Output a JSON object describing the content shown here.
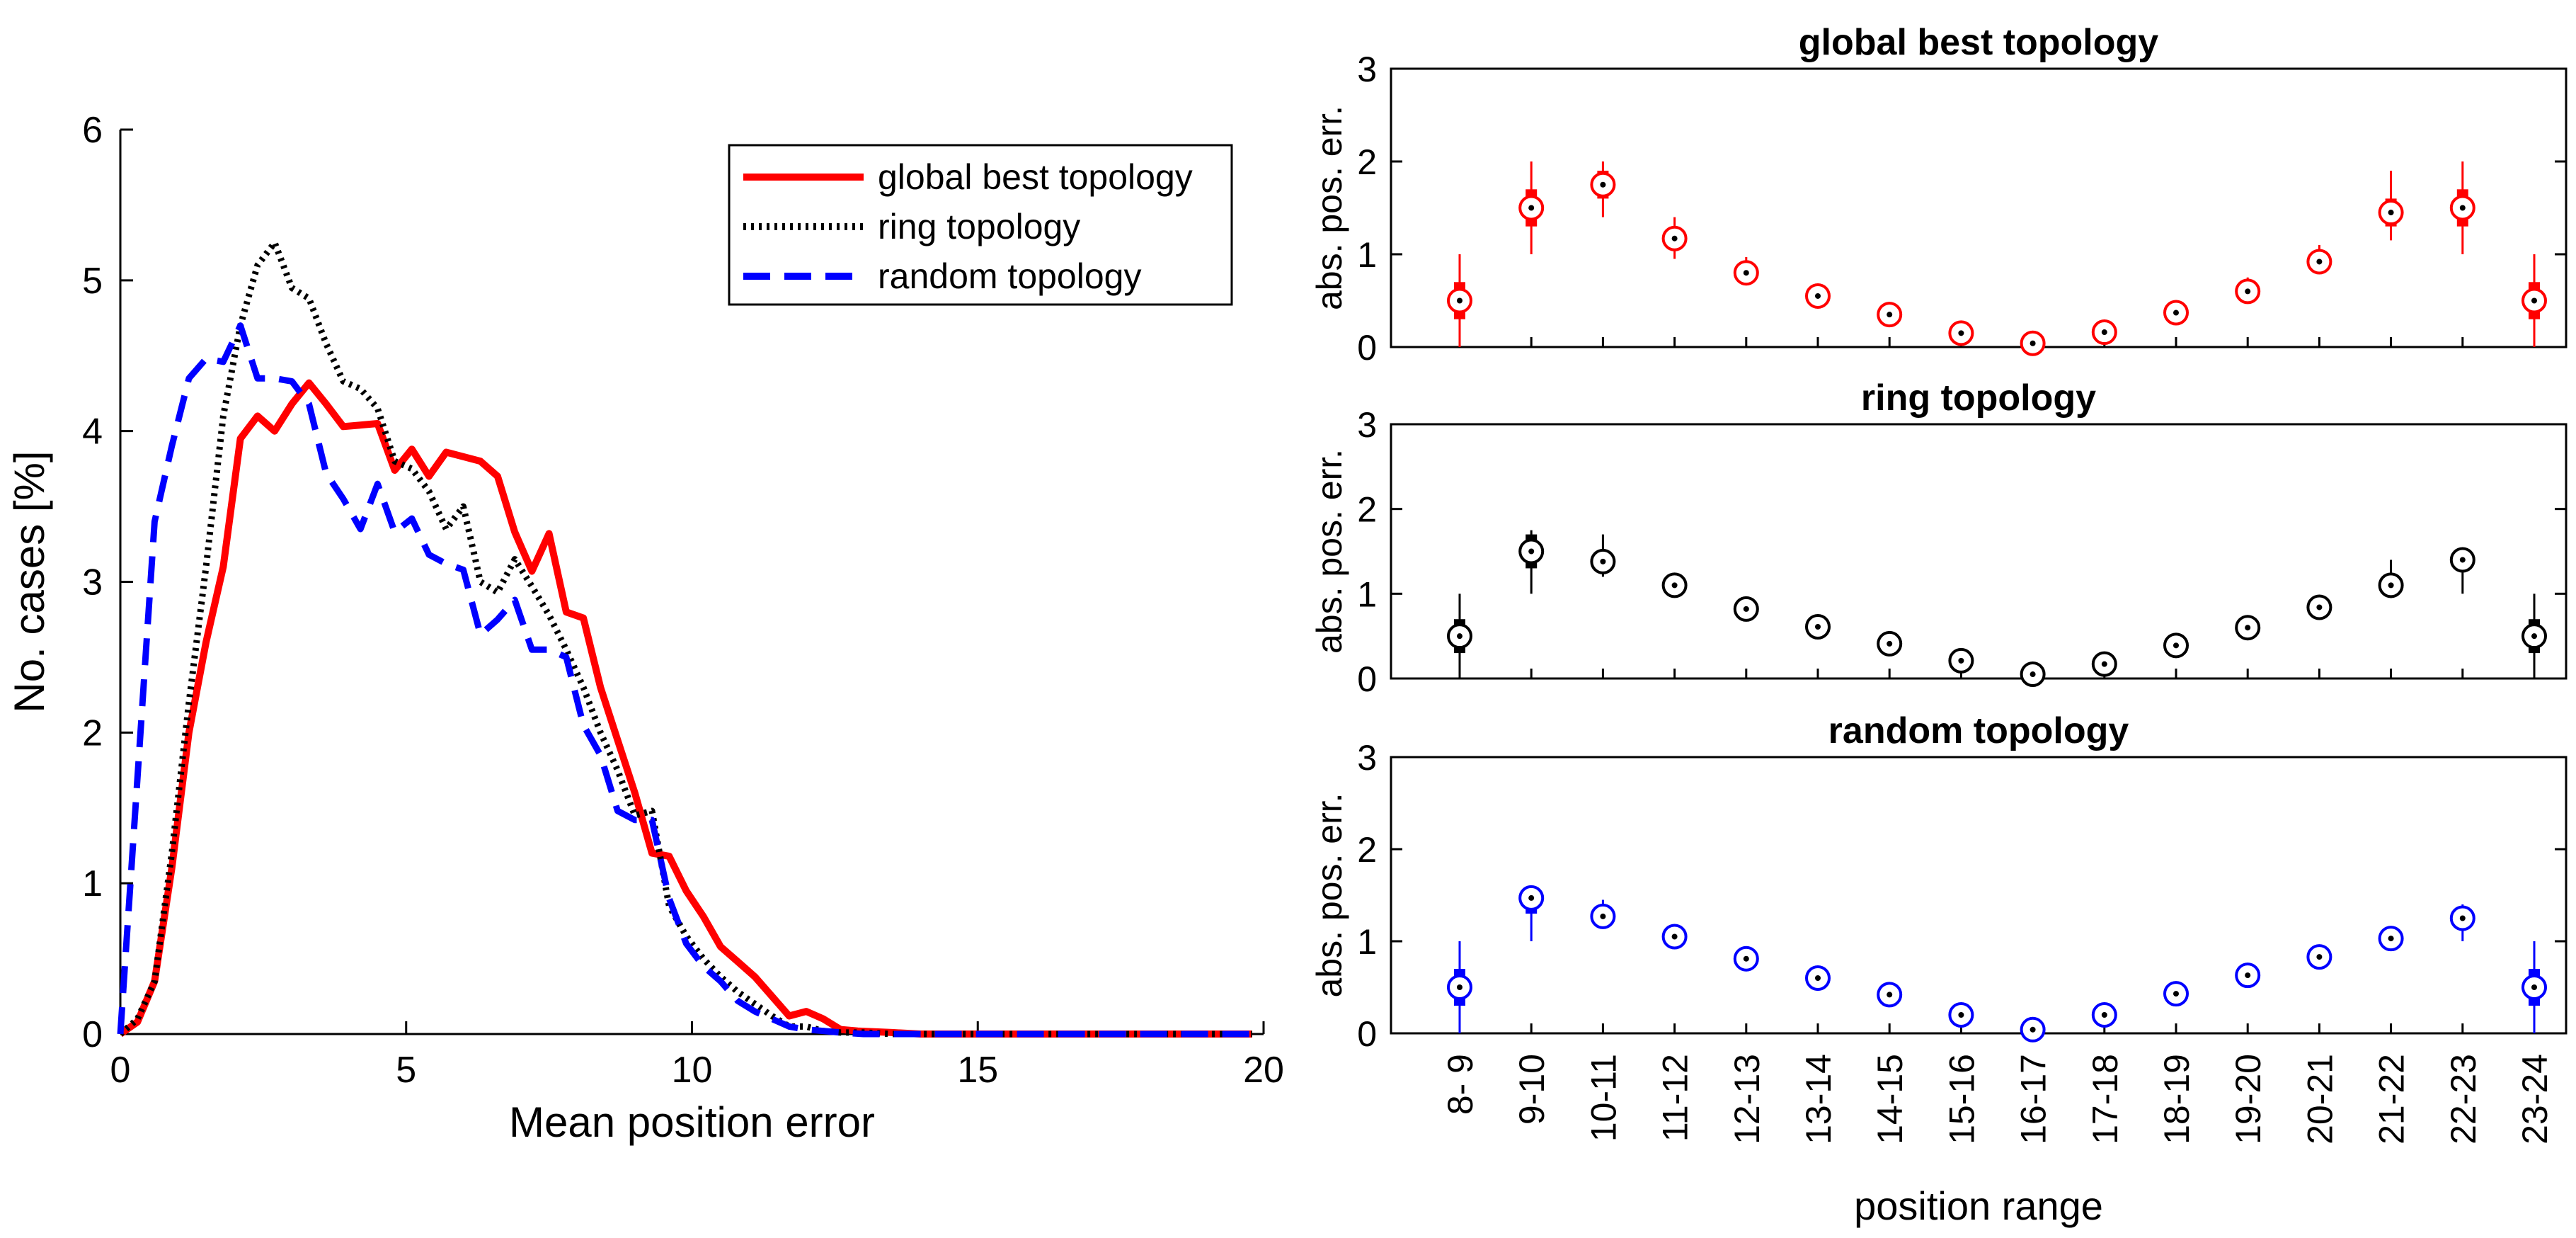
{
  "chart_data": [
    {
      "type": "line",
      "xlabel": "Mean position error",
      "ylabel": "No. cases [%]",
      "xlim": [
        0,
        20
      ],
      "ylim": [
        0,
        6
      ],
      "xticks": [
        0,
        5,
        10,
        15,
        20
      ],
      "yticks": [
        0,
        1,
        2,
        3,
        4,
        5,
        6
      ],
      "grid": false,
      "legend_position": "top-right",
      "series": [
        {
          "name": "global best topology",
          "color": "#ff0000",
          "style": "solid",
          "x": [
            0,
            0.3,
            0.6,
            0.9,
            1.2,
            1.5,
            1.8,
            2.1,
            2.4,
            2.7,
            3.0,
            3.3,
            3.6,
            3.9,
            4.2,
            4.5,
            4.8,
            5.1,
            5.4,
            5.7,
            6.0,
            6.3,
            6.6,
            6.9,
            7.2,
            7.5,
            7.8,
            8.1,
            8.4,
            8.7,
            9.0,
            9.3,
            9.6,
            9.9,
            10.2,
            10.5,
            10.8,
            11.1,
            11.4,
            11.7,
            12.0,
            12.3,
            12.6,
            12.9,
            13.5,
            14,
            15,
            16,
            17,
            18,
            19,
            19.8
          ],
          "y": [
            0,
            0.08,
            0.35,
            1.1,
            2.0,
            2.6,
            3.1,
            3.95,
            4.1,
            4.0,
            4.18,
            4.32,
            4.18,
            4.03,
            4.04,
            4.05,
            3.74,
            3.88,
            3.7,
            3.86,
            3.83,
            3.8,
            3.7,
            3.33,
            3.07,
            3.32,
            2.8,
            2.76,
            2.3,
            1.95,
            1.6,
            1.2,
            1.18,
            0.95,
            0.78,
            0.58,
            0.48,
            0.38,
            0.25,
            0.12,
            0.15,
            0.1,
            0.03,
            0.02,
            0.01,
            0,
            0,
            0,
            0,
            0,
            0,
            0
          ]
        },
        {
          "name": "ring topology",
          "color": "#000000",
          "style": "dotted",
          "x": [
            0,
            0.3,
            0.6,
            0.9,
            1.2,
            1.5,
            1.8,
            2.1,
            2.4,
            2.7,
            3.0,
            3.3,
            3.6,
            3.9,
            4.2,
            4.5,
            4.8,
            5.1,
            5.4,
            5.7,
            6.0,
            6.3,
            6.6,
            6.9,
            7.2,
            7.5,
            7.8,
            8.1,
            8.4,
            8.7,
            9.0,
            9.3,
            9.6,
            9.9,
            10.2,
            10.5,
            10.8,
            11.1,
            11.4,
            11.7,
            12.0,
            12.3,
            12.6,
            13,
            13.5,
            14,
            15,
            16,
            17,
            18,
            19,
            19.8
          ],
          "y": [
            0,
            0.1,
            0.35,
            1.2,
            2.2,
            3.1,
            4.1,
            4.7,
            5.1,
            5.25,
            4.95,
            4.88,
            4.58,
            4.33,
            4.28,
            4.15,
            3.8,
            3.75,
            3.6,
            3.35,
            3.5,
            3.0,
            2.93,
            3.15,
            2.97,
            2.78,
            2.55,
            2.3,
            2.0,
            1.75,
            1.45,
            1.48,
            0.85,
            0.65,
            0.5,
            0.38,
            0.28,
            0.2,
            0.12,
            0.05,
            0.05,
            0.02,
            0.01,
            0.01,
            0,
            0,
            0,
            0,
            0,
            0,
            0,
            0
          ]
        },
        {
          "name": "random topology",
          "color": "#0000ff",
          "style": "dashed",
          "x": [
            0,
            0.3,
            0.6,
            0.9,
            1.2,
            1.5,
            1.8,
            2.1,
            2.4,
            2.7,
            3.0,
            3.3,
            3.6,
            3.9,
            4.2,
            4.5,
            4.8,
            5.1,
            5.4,
            5.7,
            6.0,
            6.3,
            6.6,
            6.9,
            7.2,
            7.5,
            7.8,
            8.1,
            8.4,
            8.7,
            9.0,
            9.3,
            9.6,
            9.9,
            10.2,
            10.5,
            10.8,
            11.1,
            11.4,
            11.7,
            12.0,
            12.3,
            12.6,
            13,
            13.5,
            14,
            15,
            16,
            17,
            18,
            19,
            19.8
          ],
          "y": [
            0,
            1.7,
            3.4,
            3.9,
            4.35,
            4.48,
            4.46,
            4.7,
            4.35,
            4.35,
            4.33,
            4.18,
            3.72,
            3.55,
            3.35,
            3.65,
            3.33,
            3.42,
            3.18,
            3.12,
            3.08,
            2.65,
            2.75,
            2.88,
            2.55,
            2.55,
            2.5,
            2.05,
            1.85,
            1.48,
            1.42,
            1.42,
            0.9,
            0.6,
            0.45,
            0.35,
            0.22,
            0.15,
            0.1,
            0.05,
            0.03,
            0.02,
            0.01,
            0,
            0,
            0,
            0,
            0,
            0,
            0,
            0,
            0
          ]
        }
      ]
    },
    {
      "type": "box",
      "title": "global best topology",
      "ylabel": "abs. pos. err.",
      "ylim": [
        0,
        3
      ],
      "yticks": [
        0,
        1,
        2,
        3
      ],
      "color": "#ff0000",
      "categories": [
        "8- 9",
        "9-10",
        "10-11",
        "11-12",
        "12-13",
        "13-14",
        "14-15",
        "15-16",
        "16-17",
        "17-18",
        "18-19",
        "19-20",
        "20-21",
        "21-22",
        "22-23",
        "23-24"
      ],
      "median": [
        0.5,
        1.5,
        1.75,
        1.17,
        0.8,
        0.55,
        0.35,
        0.15,
        0.04,
        0.16,
        0.37,
        0.6,
        0.92,
        1.45,
        1.5,
        0.5
      ],
      "q1": [
        0.3,
        1.3,
        1.6,
        1.1,
        0.77,
        0.53,
        0.33,
        0.14,
        0.03,
        0.15,
        0.35,
        0.58,
        0.88,
        1.3,
        1.3,
        0.3
      ],
      "q3": [
        0.7,
        1.7,
        1.9,
        1.25,
        0.85,
        0.58,
        0.38,
        0.17,
        0.05,
        0.18,
        0.4,
        0.65,
        0.97,
        1.6,
        1.7,
        0.7
      ],
      "whisker_low": [
        0,
        1.0,
        1.4,
        0.95,
        0.7,
        0.5,
        0.3,
        0.12,
        0.0,
        0.12,
        0.3,
        0.5,
        0.8,
        1.15,
        1.0,
        0
      ],
      "whisker_high": [
        1.0,
        2.0,
        2.0,
        1.4,
        0.97,
        0.62,
        0.42,
        0.2,
        0.08,
        0.22,
        0.45,
        0.75,
        1.1,
        1.9,
        2.0,
        1.0
      ]
    },
    {
      "type": "box",
      "title": "ring topology",
      "ylabel": "abs. pos. err.",
      "ylim": [
        0,
        3
      ],
      "yticks": [
        0,
        1,
        2,
        3
      ],
      "color": "#000000",
      "categories": [
        "8- 9",
        "9-10",
        "10-11",
        "11-12",
        "12-13",
        "13-14",
        "14-15",
        "15-16",
        "16-17",
        "17-18",
        "18-19",
        "19-20",
        "20-21",
        "21-22",
        "22-23",
        "23-24"
      ],
      "median": [
        0.5,
        1.5,
        1.38,
        1.1,
        0.82,
        0.61,
        0.41,
        0.21,
        0.05,
        0.17,
        0.39,
        0.6,
        0.84,
        1.1,
        1.4,
        0.5
      ],
      "q1": [
        0.3,
        1.3,
        1.3,
        1.05,
        0.78,
        0.58,
        0.38,
        0.19,
        0.04,
        0.15,
        0.37,
        0.57,
        0.8,
        1.05,
        1.3,
        0.3
      ],
      "q3": [
        0.7,
        1.7,
        1.45,
        1.15,
        0.86,
        0.64,
        0.44,
        0.23,
        0.06,
        0.19,
        0.42,
        0.63,
        0.88,
        1.2,
        1.5,
        0.7
      ],
      "whisker_low": [
        0,
        1.0,
        1.2,
        1.0,
        0.75,
        0.55,
        0.35,
        0.15,
        0.0,
        0.12,
        0.33,
        0.52,
        0.78,
        0.95,
        1.0,
        0
      ],
      "whisker_high": [
        1.0,
        1.75,
        1.7,
        1.2,
        0.9,
        0.68,
        0.48,
        0.27,
        0.08,
        0.23,
        0.46,
        0.68,
        0.92,
        1.4,
        1.5,
        1.0
      ]
    },
    {
      "type": "box",
      "title": "random topology",
      "ylabel": "abs. pos. err.",
      "ylim": [
        0,
        3
      ],
      "yticks": [
        0,
        1,
        2,
        3
      ],
      "xlabel": "position range",
      "color": "#0000ff",
      "categories": [
        "8- 9",
        "9-10",
        "10-11",
        "11-12",
        "12-13",
        "13-14",
        "14-15",
        "15-16",
        "16-17",
        "17-18",
        "18-19",
        "19-20",
        "20-21",
        "21-22",
        "22-23",
        "23-24"
      ],
      "median": [
        0.5,
        1.47,
        1.27,
        1.05,
        0.81,
        0.6,
        0.42,
        0.2,
        0.04,
        0.2,
        0.43,
        0.63,
        0.83,
        1.03,
        1.25,
        0.5
      ],
      "q1": [
        0.3,
        1.3,
        1.2,
        1.0,
        0.78,
        0.57,
        0.4,
        0.18,
        0.03,
        0.18,
        0.41,
        0.6,
        0.8,
        1.0,
        1.15,
        0.3
      ],
      "q3": [
        0.7,
        1.55,
        1.35,
        1.1,
        0.85,
        0.63,
        0.45,
        0.22,
        0.05,
        0.22,
        0.46,
        0.66,
        0.86,
        1.08,
        1.35,
        0.7
      ],
      "whisker_low": [
        0,
        1.0,
        1.15,
        0.97,
        0.75,
        0.55,
        0.37,
        0.15,
        0.0,
        0.15,
        0.38,
        0.57,
        0.77,
        0.97,
        1.0,
        0
      ],
      "whisker_high": [
        1.0,
        1.6,
        1.45,
        1.12,
        0.88,
        0.66,
        0.48,
        0.25,
        0.07,
        0.25,
        0.48,
        0.7,
        0.9,
        1.1,
        1.4,
        1.0
      ]
    }
  ]
}
